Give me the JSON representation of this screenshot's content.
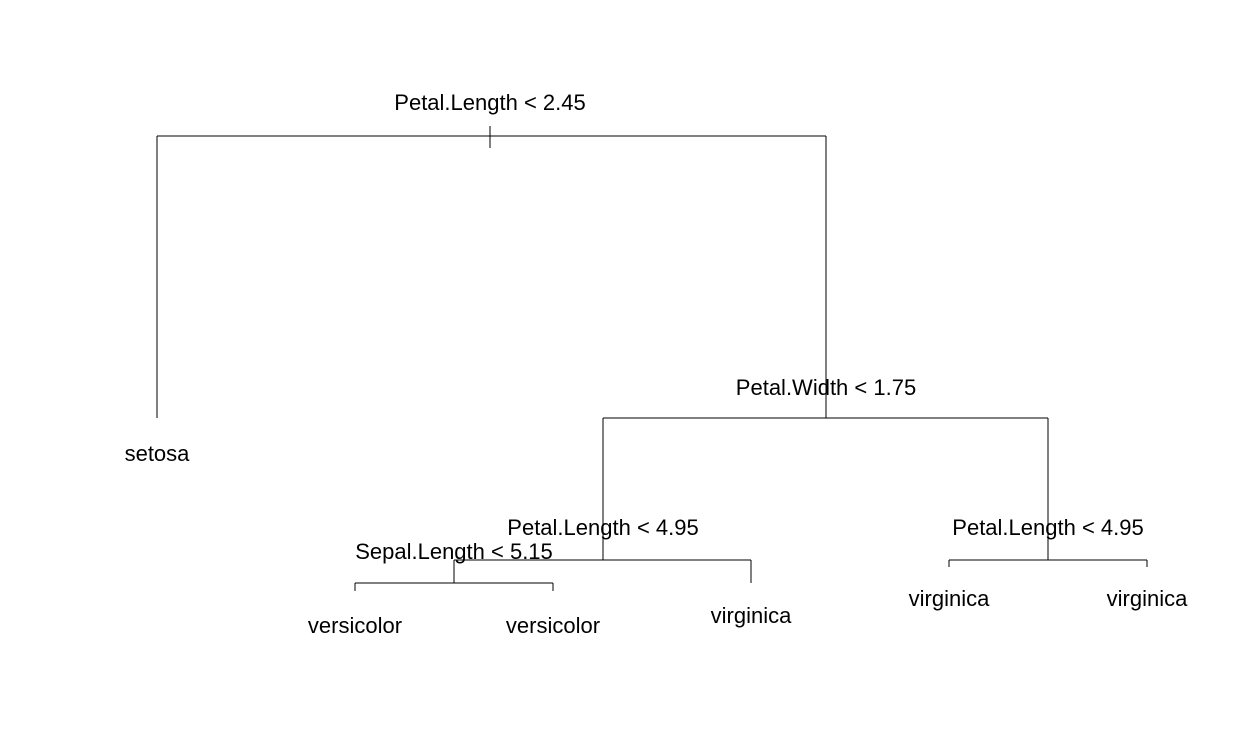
{
  "tree": {
    "root": {
      "split": "Petal.Length < 2.45",
      "left_leaf": "setosa",
      "right": {
        "split": "Petal.Width < 1.75",
        "left": {
          "split": "Petal.Length < 4.95",
          "left": {
            "split": "Sepal.Length < 5.15",
            "left_leaf": "versicolor",
            "right_leaf": "versicolor"
          },
          "right_leaf": "virginica"
        },
        "right": {
          "split": "Petal.Length < 4.95",
          "left_leaf": "virginica",
          "right_leaf": "virginica"
        }
      }
    }
  }
}
